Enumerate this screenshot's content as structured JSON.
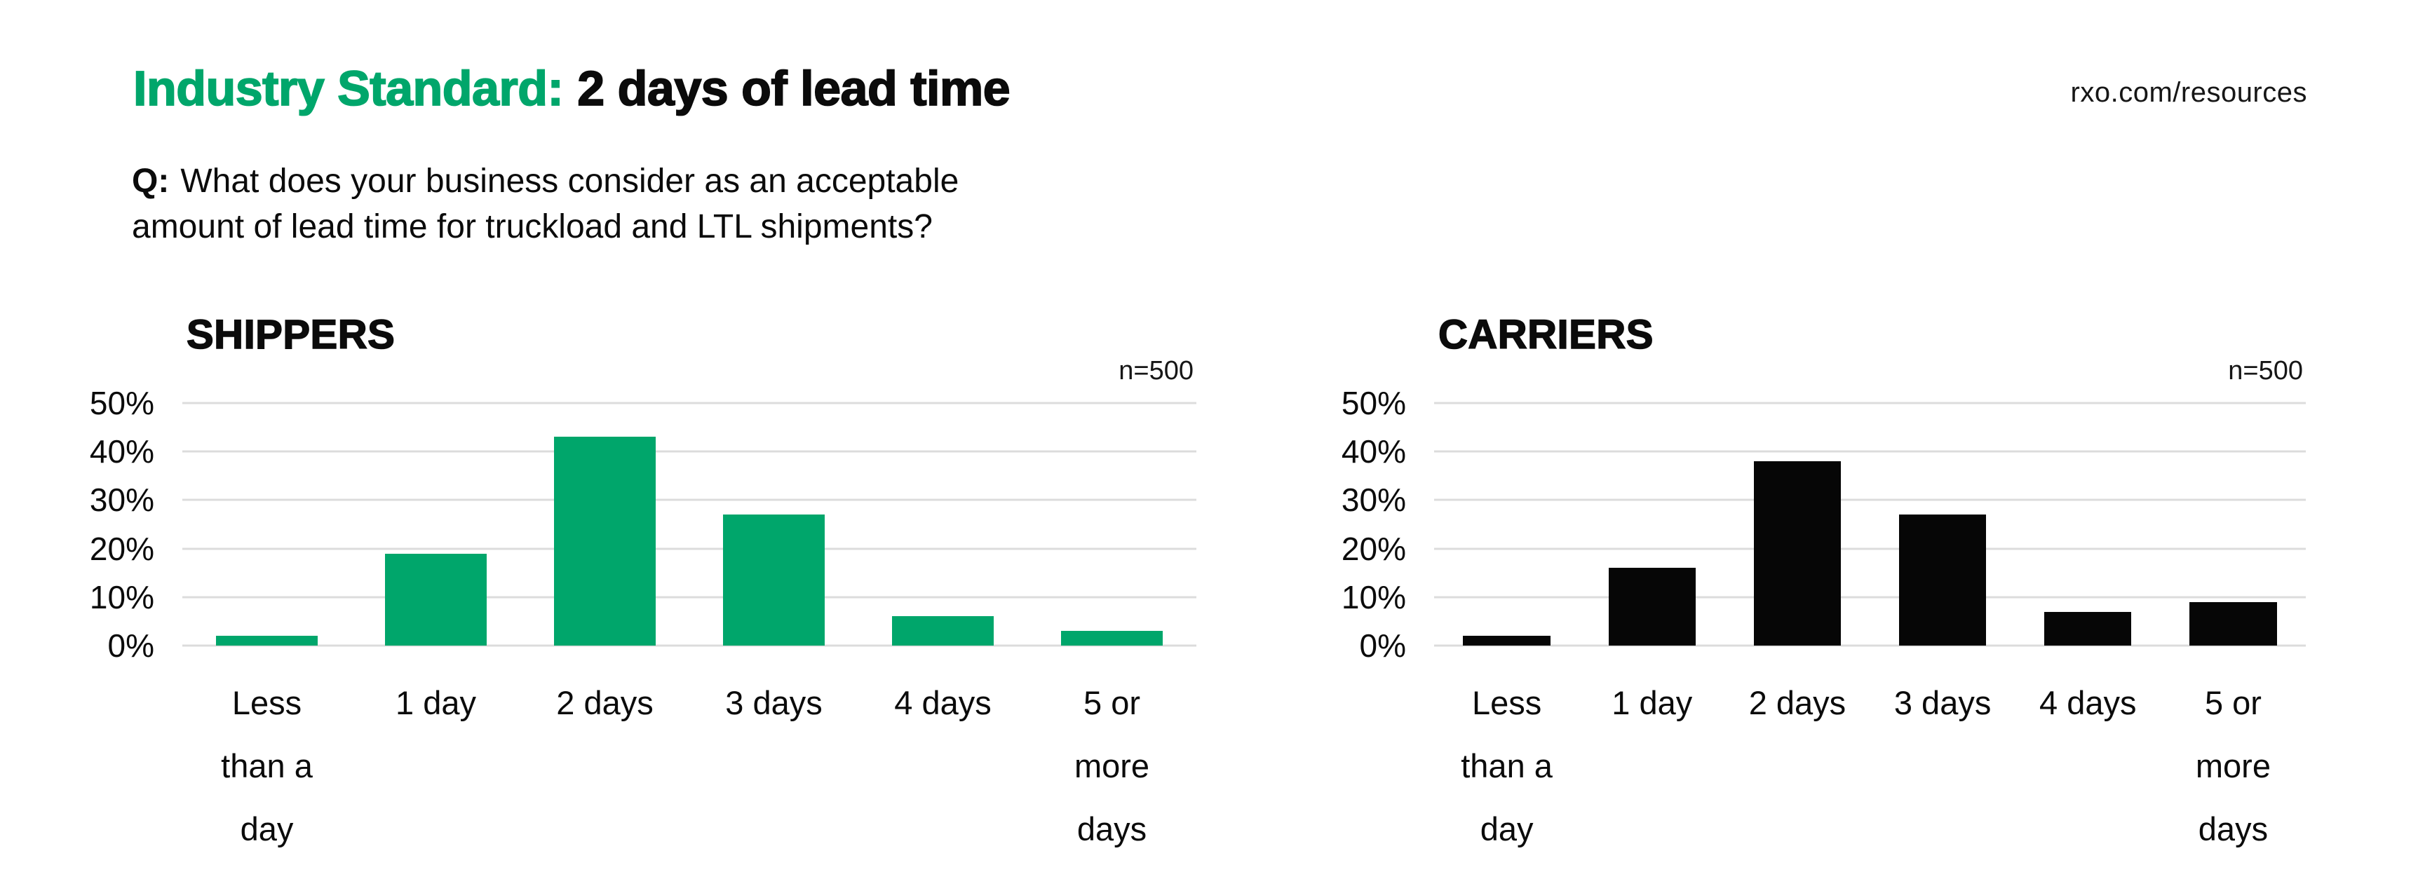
{
  "header": {
    "title_highlight": "Industry Standard:",
    "title_rest": "2 days of lead time",
    "url": "rxo.com/resources",
    "question_prefix": "Q:",
    "question_lines": [
      "What does your business consider as an acceptable",
      "amount of lead time for truckload and LTL shipments?"
    ]
  },
  "colors": {
    "accent_green": "#00A66B",
    "bar_black": "#060606",
    "gridline": "#DCDCDC",
    "text": "#0B0B0B"
  },
  "chart_data": [
    {
      "type": "bar",
      "title": "SHIPPERS",
      "sample_size_label": "n=500",
      "categories": [
        "Less than a day",
        "1 day",
        "2 days",
        "3 days",
        "4 days",
        "5 or more days"
      ],
      "category_lines": [
        [
          "Less",
          "than a",
          "day"
        ],
        [
          "1 day"
        ],
        [
          "2 days"
        ],
        [
          "3 days"
        ],
        [
          "4 days"
        ],
        [
          "5 or",
          "more",
          "days"
        ]
      ],
      "values": [
        2,
        19,
        43,
        27,
        6,
        3
      ],
      "unit": "%",
      "bar_color": "#00A66B",
      "yticks": [
        "50%",
        "40%",
        "30%",
        "20%",
        "10%",
        "0%"
      ],
      "ylim": [
        0,
        50
      ],
      "grid": true,
      "legend": "none",
      "xlabel": "",
      "ylabel": ""
    },
    {
      "type": "bar",
      "title": "CARRIERS",
      "sample_size_label": "n=500",
      "categories": [
        "Less than a day",
        "1 day",
        "2 days",
        "3 days",
        "4 days",
        "5 or more days"
      ],
      "category_lines": [
        [
          "Less",
          "than a",
          "day"
        ],
        [
          "1 day"
        ],
        [
          "2 days"
        ],
        [
          "3 days"
        ],
        [
          "4 days"
        ],
        [
          "5 or",
          "more",
          "days"
        ]
      ],
      "values": [
        2,
        16,
        38,
        27,
        7,
        9
      ],
      "unit": "%",
      "bar_color": "#060606",
      "yticks": [
        "50%",
        "40%",
        "30%",
        "20%",
        "10%",
        "0%"
      ],
      "ylim": [
        0,
        50
      ],
      "grid": true,
      "legend": "none",
      "xlabel": "",
      "ylabel": ""
    }
  ]
}
